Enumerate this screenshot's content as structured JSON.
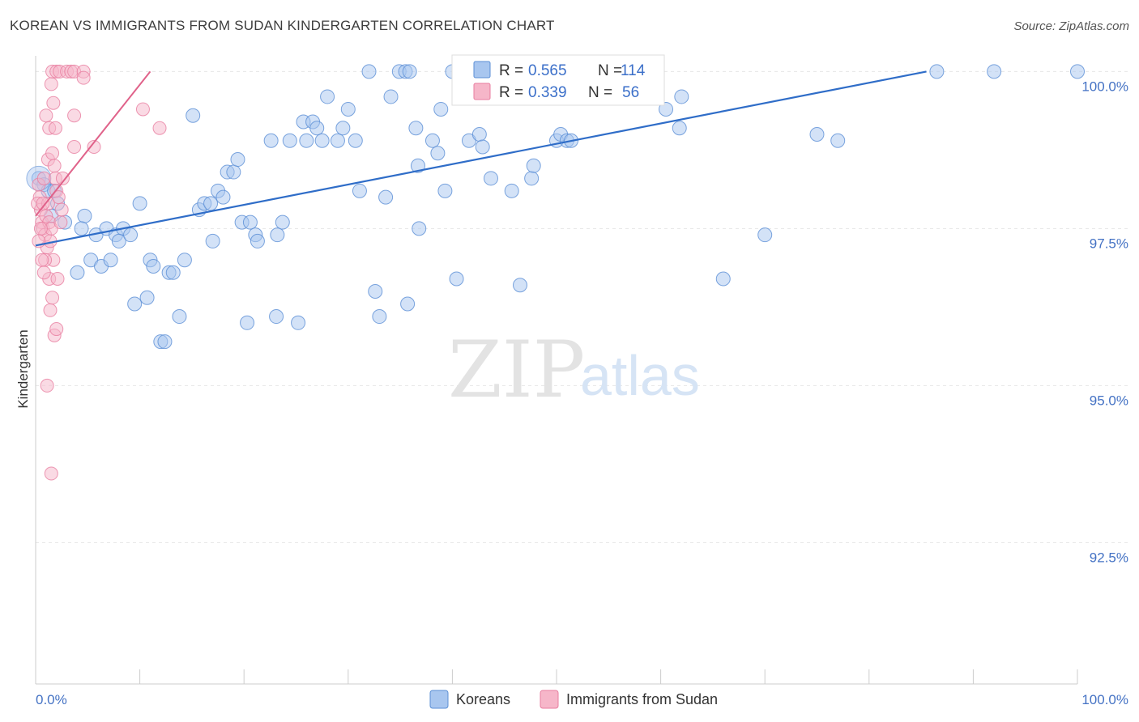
{
  "title": "KOREAN VS IMMIGRANTS FROM SUDAN KINDERGARTEN CORRELATION CHART",
  "source": "Source: ZipAtlas.com",
  "colors": {
    "korean_fill": "#a8c6ef",
    "korean_stroke": "#5b8fd6",
    "korean_line": "#2f6dc8",
    "sudan_fill": "#f6b6c9",
    "sudan_stroke": "#e87ea0",
    "sudan_line": "#e0628a",
    "tick_label": "#4472c4",
    "grid": "#e6e6e6"
  },
  "legend": {
    "korean": {
      "r_label": "R =",
      "r_value": "0.565",
      "n_label": "N =",
      "n_value": "114"
    },
    "sudan": {
      "r_label": "R =",
      "r_value": "0.339",
      "n_label": "N =",
      "n_value": "56"
    }
  },
  "bottom_legend": [
    "Koreans",
    "Immigrants from Sudan"
  ],
  "watermark": {
    "zip": "ZIP",
    "atlas": "atlas"
  },
  "chart_data": {
    "type": "scatter",
    "title": "KOREAN VS IMMIGRANTS FROM SUDAN KINDERGARTEN CORRELATION CHART",
    "xlabel": "",
    "ylabel": "Kindergarten",
    "xlim": [
      0,
      100
    ],
    "ylim": [
      90.25,
      100.25
    ],
    "y_ticks": [
      92.5,
      95.0,
      97.5,
      100.0
    ],
    "y_tick_labels": [
      "92.5%",
      "95.0%",
      "97.5%",
      "100.0%"
    ],
    "x_tick_labels": [
      "0.0%",
      "100.0%"
    ],
    "grid": true,
    "legend_position": "top-center",
    "series": [
      {
        "name": "Koreans",
        "r": 0.565,
        "n": 114,
        "trend": {
          "x": [
            0,
            85.5
          ],
          "y": [
            97.23,
            100.0
          ]
        },
        "points": [
          [
            0.3,
            98.3
          ],
          [
            0.8,
            98.2
          ],
          [
            1.2,
            98.1
          ],
          [
            1.8,
            98.1
          ],
          [
            2.1,
            97.9
          ],
          [
            1.5,
            97.7
          ],
          [
            2.8,
            97.6
          ],
          [
            4.7,
            97.7
          ],
          [
            4.4,
            97.5
          ],
          [
            5.8,
            97.4
          ],
          [
            6.8,
            97.5
          ],
          [
            7.7,
            97.4
          ],
          [
            8.4,
            97.5
          ],
          [
            8.0,
            97.3
          ],
          [
            9.1,
            97.4
          ],
          [
            5.3,
            97.0
          ],
          [
            6.3,
            96.9
          ],
          [
            7.2,
            97.0
          ],
          [
            4.0,
            96.8
          ],
          [
            10.0,
            97.9
          ],
          [
            11.0,
            97.0
          ],
          [
            11.3,
            96.9
          ],
          [
            12.8,
            96.8
          ],
          [
            13.2,
            96.8
          ],
          [
            14.3,
            97.0
          ],
          [
            9.5,
            96.3
          ],
          [
            10.7,
            96.4
          ],
          [
            13.8,
            96.1
          ],
          [
            12.0,
            95.7
          ],
          [
            12.4,
            95.7
          ],
          [
            15.7,
            97.8
          ],
          [
            16.2,
            97.9
          ],
          [
            16.8,
            97.9
          ],
          [
            17.0,
            97.3
          ],
          [
            17.5,
            98.1
          ],
          [
            18.0,
            98.0
          ],
          [
            18.4,
            98.4
          ],
          [
            19.0,
            98.4
          ],
          [
            19.4,
            98.6
          ],
          [
            19.8,
            97.6
          ],
          [
            20.6,
            97.6
          ],
          [
            21.1,
            97.4
          ],
          [
            21.3,
            97.3
          ],
          [
            23.2,
            97.4
          ],
          [
            23.7,
            97.6
          ],
          [
            20.3,
            96.0
          ],
          [
            23.1,
            96.1
          ],
          [
            25.2,
            96.0
          ],
          [
            15.1,
            99.3
          ],
          [
            22.6,
            98.9
          ],
          [
            24.4,
            98.9
          ],
          [
            25.7,
            99.2
          ],
          [
            26.0,
            98.9
          ],
          [
            26.6,
            99.2
          ],
          [
            27.0,
            99.1
          ],
          [
            27.5,
            98.9
          ],
          [
            28.0,
            99.6
          ],
          [
            29.0,
            98.9
          ],
          [
            29.5,
            99.1
          ],
          [
            30.0,
            99.4
          ],
          [
            30.7,
            98.9
          ],
          [
            31.1,
            98.1
          ],
          [
            32.0,
            100.0
          ],
          [
            32.6,
            96.5
          ],
          [
            33.0,
            96.1
          ],
          [
            33.6,
            98.0
          ],
          [
            34.1,
            99.6
          ],
          [
            34.9,
            100.0
          ],
          [
            35.5,
            100.0
          ],
          [
            35.9,
            100.0
          ],
          [
            35.7,
            96.3
          ],
          [
            36.5,
            99.1
          ],
          [
            36.7,
            98.5
          ],
          [
            36.8,
            97.5
          ],
          [
            38.1,
            98.9
          ],
          [
            38.6,
            98.7
          ],
          [
            38.9,
            99.4
          ],
          [
            39.3,
            98.1
          ],
          [
            40.0,
            100.0
          ],
          [
            40.4,
            96.7
          ],
          [
            41.0,
            100.0
          ],
          [
            41.6,
            98.9
          ],
          [
            42.1,
            100.0
          ],
          [
            42.6,
            99.0
          ],
          [
            42.9,
            98.8
          ],
          [
            43.7,
            98.3
          ],
          [
            45.7,
            98.1
          ],
          [
            46.1,
            100.0
          ],
          [
            46.5,
            96.6
          ],
          [
            47.0,
            100.0
          ],
          [
            47.6,
            98.3
          ],
          [
            47.8,
            98.5
          ],
          [
            48.8,
            100.0
          ],
          [
            50.0,
            98.9
          ],
          [
            50.4,
            99.0
          ],
          [
            51.0,
            98.9
          ],
          [
            51.4,
            98.9
          ],
          [
            52.2,
            99.6
          ],
          [
            52.9,
            100.0
          ],
          [
            53.6,
            100.0
          ],
          [
            56.0,
            99.6
          ],
          [
            56.5,
            100.0
          ],
          [
            57.5,
            99.6
          ],
          [
            59.0,
            100.0
          ],
          [
            60.5,
            99.4
          ],
          [
            61.8,
            99.1
          ],
          [
            62.0,
            99.6
          ],
          [
            66.0,
            96.7
          ],
          [
            70.0,
            97.4
          ],
          [
            75.0,
            99.0
          ],
          [
            77.0,
            98.9
          ],
          [
            86.5,
            100.0
          ],
          [
            92.0,
            100.0
          ],
          [
            100.0,
            100.0
          ]
        ]
      },
      {
        "name": "Immigrants from Sudan",
        "r": 0.339,
        "n": 56,
        "trend": {
          "x": [
            0,
            11.0
          ],
          "y": [
            97.7,
            100.0
          ]
        },
        "points": [
          [
            0.3,
            98.2
          ],
          [
            0.4,
            98.0
          ],
          [
            0.5,
            97.8
          ],
          [
            0.6,
            97.6
          ],
          [
            0.7,
            97.5
          ],
          [
            0.8,
            98.3
          ],
          [
            0.9,
            97.4
          ],
          [
            1.0,
            97.7
          ],
          [
            1.1,
            97.2
          ],
          [
            1.2,
            98.6
          ],
          [
            1.3,
            97.6
          ],
          [
            1.4,
            97.3
          ],
          [
            1.5,
            97.5
          ],
          [
            1.6,
            98.7
          ],
          [
            1.7,
            97.0
          ],
          [
            1.8,
            98.5
          ],
          [
            1.9,
            98.3
          ],
          [
            2.0,
            98.1
          ],
          [
            2.2,
            98.0
          ],
          [
            2.4,
            97.6
          ],
          [
            2.6,
            98.3
          ],
          [
            0.2,
            97.9
          ],
          [
            0.5,
            97.5
          ],
          [
            0.9,
            97.0
          ],
          [
            1.3,
            96.7
          ],
          [
            1.4,
            96.2
          ],
          [
            1.6,
            96.4
          ],
          [
            1.8,
            95.8
          ],
          [
            2.0,
            95.9
          ],
          [
            1.1,
            95.0
          ],
          [
            1.5,
            93.6
          ],
          [
            2.1,
            96.7
          ],
          [
            1.0,
            99.3
          ],
          [
            1.3,
            99.1
          ],
          [
            1.5,
            99.8
          ],
          [
            1.7,
            99.5
          ],
          [
            1.9,
            99.1
          ],
          [
            1.6,
            100.0
          ],
          [
            2.0,
            100.0
          ],
          [
            2.3,
            100.0
          ],
          [
            3.0,
            100.0
          ],
          [
            3.4,
            100.0
          ],
          [
            3.7,
            100.0
          ],
          [
            4.6,
            100.0
          ],
          [
            4.6,
            99.9
          ],
          [
            3.7,
            99.3
          ],
          [
            3.7,
            98.8
          ],
          [
            5.6,
            98.8
          ],
          [
            10.3,
            99.4
          ],
          [
            11.9,
            99.1
          ],
          [
            0.3,
            97.3
          ],
          [
            0.6,
            97.0
          ],
          [
            0.8,
            96.8
          ],
          [
            2.5,
            97.8
          ],
          [
            1.2,
            97.9
          ],
          [
            0.7,
            97.9
          ]
        ]
      }
    ]
  }
}
